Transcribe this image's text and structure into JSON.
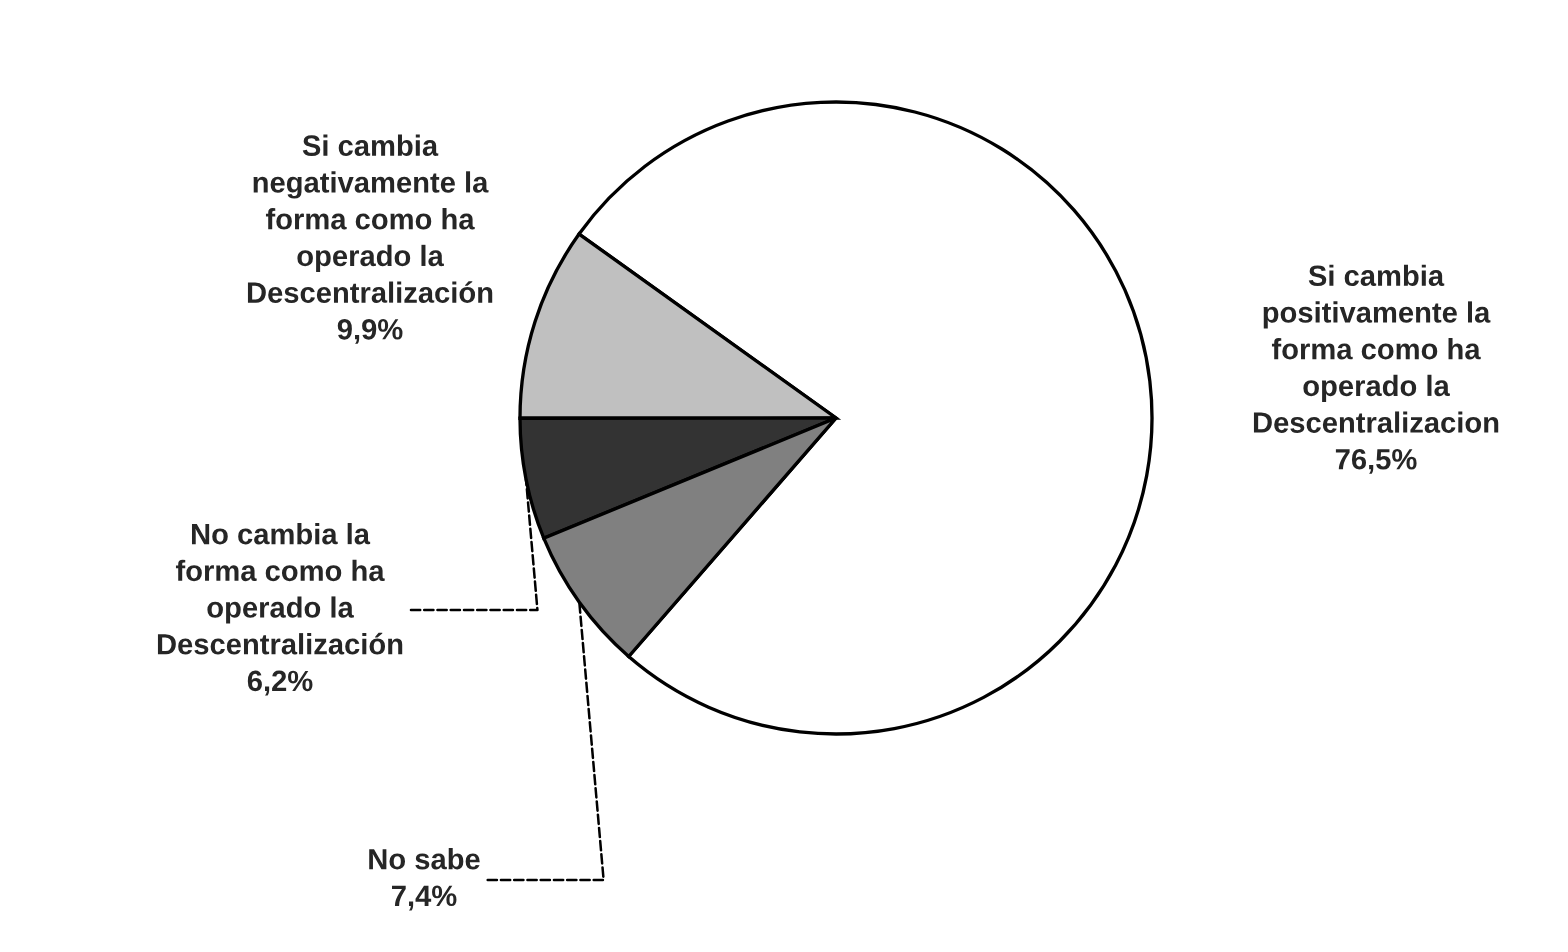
{
  "chart_data": {
    "type": "pie",
    "categories": [
      "Si cambia\npositivamente la\nforma como ha\noperado la\nDescentralizacion",
      "Si cambia\nnegativamente la\nforma como ha\noperado la\nDescentralización",
      "No cambia la\nforma como ha\noperado la\nDescentralización",
      "No sabe"
    ],
    "values": [
      76.5,
      9.9,
      6.2,
      7.4
    ],
    "value_labels": [
      "76,5%",
      "9,9%",
      "6,2%",
      "7,4%"
    ],
    "colors": [
      "#ffffff",
      "#c0c0c0",
      "#333333",
      "#808080"
    ]
  }
}
